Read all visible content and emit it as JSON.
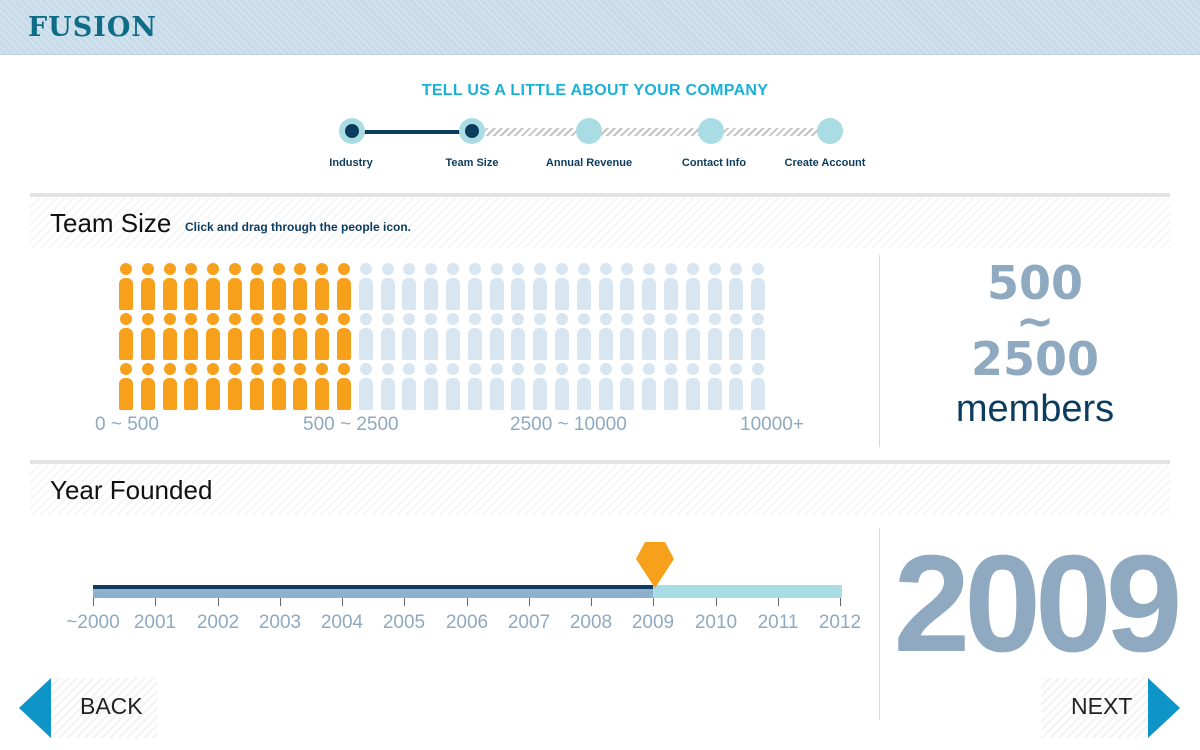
{
  "app": {
    "logo_text": "FUSION"
  },
  "wizard": {
    "title": "TELL US A LITTLE ABOUT YOUR COMPANY",
    "steps": [
      {
        "label": "Industry",
        "status": "done"
      },
      {
        "label": "Team Size",
        "status": "current"
      },
      {
        "label": "Annual Revenue",
        "status": "todo"
      },
      {
        "label": "Contact Info",
        "status": "todo"
      },
      {
        "label": "Create Account",
        "status": "todo"
      }
    ]
  },
  "team_size": {
    "title": "Team Size",
    "hint": "Click and drag through the people icon.",
    "people_columns": 30,
    "people_rows": 3,
    "selected_columns": 11,
    "range_labels": [
      "0 ~ 500",
      "500 ~ 2500",
      "2500 ~ 10000",
      "10000+"
    ],
    "selected_low": "500",
    "tilde": "~",
    "selected_high": "2500",
    "unit": "members"
  },
  "year_founded": {
    "title": "Year Founded",
    "years": [
      "~2000",
      "2001",
      "2002",
      "2003",
      "2004",
      "2005",
      "2006",
      "2007",
      "2008",
      "2009",
      "2010",
      "2011",
      "2012"
    ],
    "selected_year": "2009"
  },
  "nav": {
    "back_label": "BACK",
    "next_label": "NEXT"
  },
  "colors": {
    "accent": "#19b1d8",
    "dark_navy": "#0c3c5e",
    "orange": "#f7a01c",
    "slate": "#8fa9c1",
    "light_teal": "#a9dde3",
    "arrow_blue": "#0f94c7"
  }
}
